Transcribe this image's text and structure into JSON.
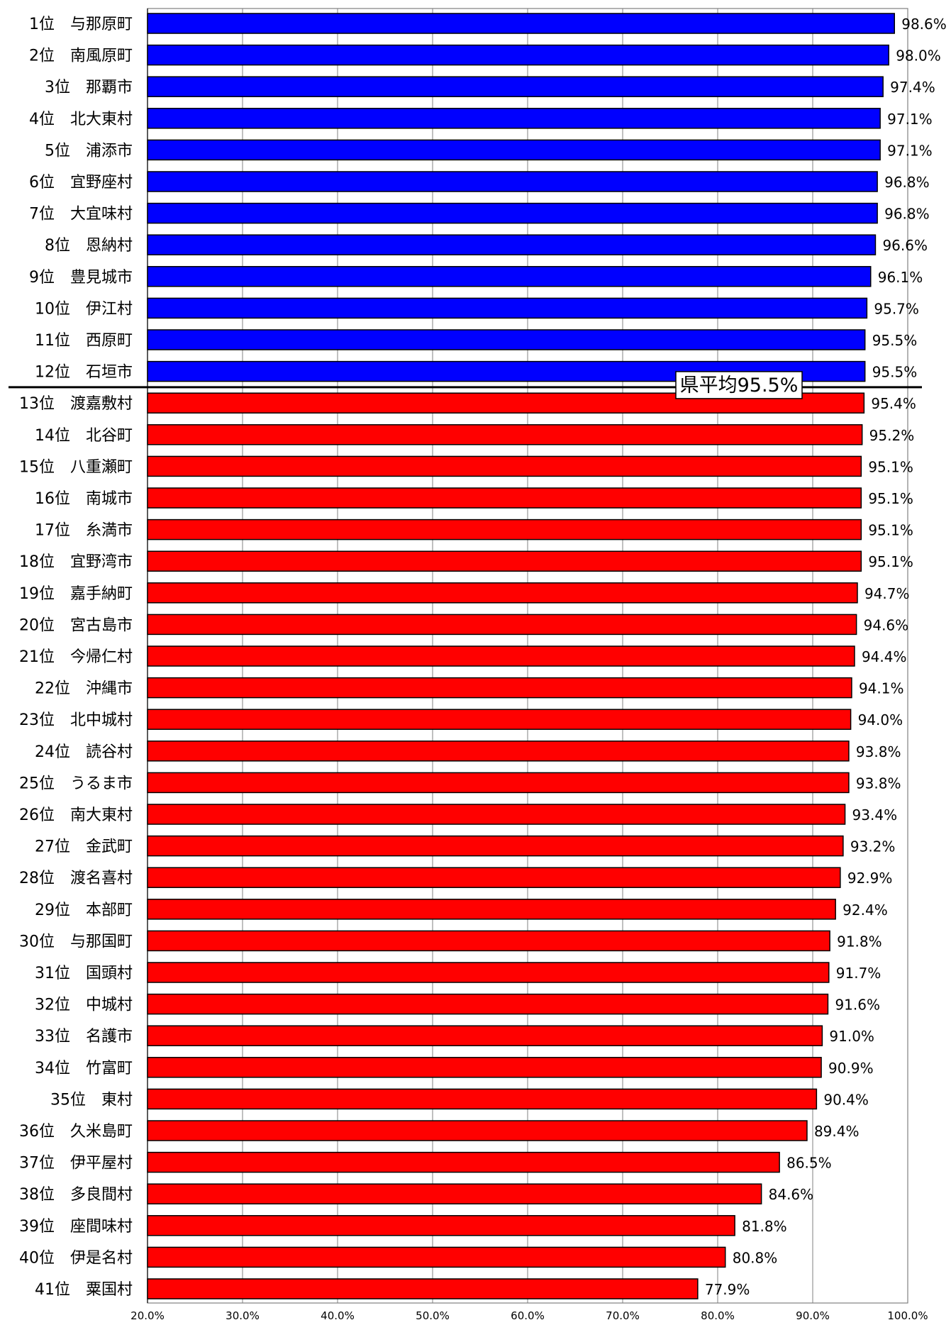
{
  "chart_data": {
    "type": "bar",
    "orientation": "horizontal",
    "categories": [
      "1位　与那原町",
      "2位　南風原町",
      "3位　那覇市",
      "4位　北大東村",
      "5位　浦添市",
      "6位　宜野座村",
      "7位　大宜味村",
      "8位　恩納村",
      "9位　豊見城市",
      "10位　伊江村",
      "11位　西原町",
      "12位　石垣市",
      "13位　渡嘉敷村",
      "14位　北谷町",
      "15位　八重瀬町",
      "16位　南城市",
      "17位　糸満市",
      "18位　宜野湾市",
      "19位　嘉手納町",
      "20位　宮古島市",
      "21位　今帰仁村",
      "22位　沖縄市",
      "23位　北中城村",
      "24位　読谷村",
      "25位　うるま市",
      "26位　南大東村",
      "27位　金武町",
      "28位　渡名喜村",
      "29位　本部町",
      "30位　与那国町",
      "31位　国頭村",
      "32位　中城村",
      "33位　名護市",
      "34位　竹富町",
      "35位　東村",
      "36位　久米島町",
      "37位　伊平屋村",
      "38位　多良間村",
      "39位　座間味村",
      "40位　伊是名村",
      "41位　粟国村"
    ],
    "values": [
      98.6,
      98.0,
      97.4,
      97.1,
      97.1,
      96.8,
      96.8,
      96.6,
      96.1,
      95.7,
      95.5,
      95.5,
      95.4,
      95.2,
      95.1,
      95.1,
      95.1,
      95.1,
      94.7,
      94.6,
      94.4,
      94.1,
      94.0,
      93.8,
      93.8,
      93.4,
      93.2,
      92.9,
      92.4,
      91.8,
      91.7,
      91.6,
      91.0,
      90.9,
      90.4,
      89.4,
      86.5,
      84.6,
      81.8,
      80.8,
      77.9
    ],
    "value_labels": [
      "98.6%",
      "98.0%",
      "97.4%",
      "97.1%",
      "97.1%",
      "96.8%",
      "96.8%",
      "96.6%",
      "96.1%",
      "95.7%",
      "95.5%",
      "95.5%",
      "95.4%",
      "95.2%",
      "95.1%",
      "95.1%",
      "95.1%",
      "95.1%",
      "94.7%",
      "94.6%",
      "94.4%",
      "94.1%",
      "94.0%",
      "93.8%",
      "93.8%",
      "93.4%",
      "93.2%",
      "92.9%",
      "92.4%",
      "91.8%",
      "91.7%",
      "91.6%",
      "91.0%",
      "90.9%",
      "90.4%",
      "89.4%",
      "86.5%",
      "84.6%",
      "81.8%",
      "80.8%",
      "77.9%"
    ],
    "xlim": [
      20,
      100
    ],
    "xticks": [
      20,
      30,
      40,
      50,
      60,
      70,
      80,
      90,
      100
    ],
    "xtick_labels": [
      "20.0%",
      "30.0%",
      "40.0%",
      "50.0%",
      "60.0%",
      "70.0%",
      "80.0%",
      "90.0%",
      "100.0%"
    ],
    "grid": "vertical",
    "title": "",
    "xlabel": "",
    "ylabel": "",
    "reference_line": {
      "value": 95.5,
      "label": "県平均95.5%",
      "after_rank": 12
    },
    "colors": {
      "above_average": "#0000ff",
      "below_average": "#ff0000",
      "bar_outline": "#000000",
      "grid": "#808080",
      "plot_border": "#808080",
      "reference_line": "#000000"
    }
  }
}
